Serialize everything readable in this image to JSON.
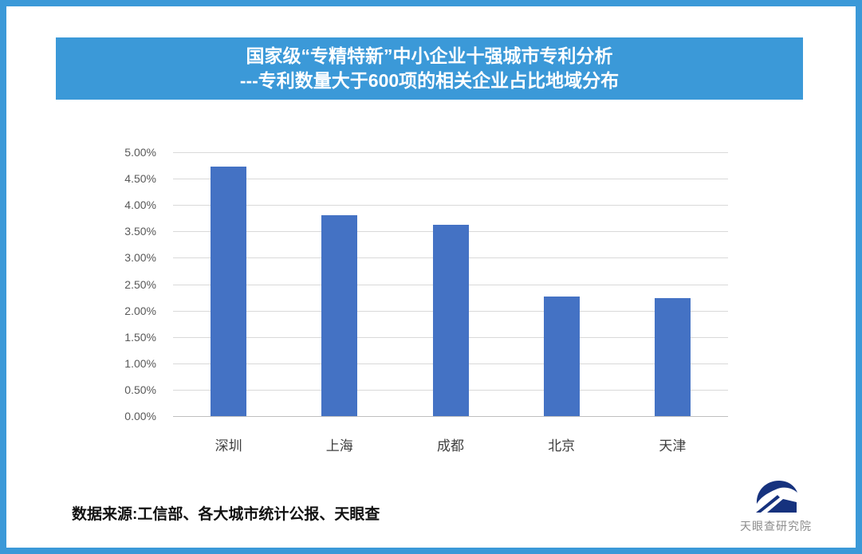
{
  "colors": {
    "accent_blue": "#3b99d8",
    "banner_text": "#ffffff",
    "bar_blue": "#4472c4",
    "gridline": "#d9d9d9",
    "axis_line": "#bfbfbf",
    "y_tick_gray": "#595959",
    "x_label_dark": "#3f3f3f",
    "source_black": "#111111",
    "logo_navy": "#16327e",
    "logo_text_gray": "#8c8c8c"
  },
  "banner": {
    "title_line1": "国家级“专精特新”中小企业十强城市专利分析",
    "title_line2": "---专利数量大于600项的相关企业占比地域分布"
  },
  "chart_data": {
    "type": "bar",
    "title": "国家级“专精特新”中小企业十强城市专利分析---专利数量大于600项的相关企业占比地域分布",
    "categories": [
      "深圳",
      "上海",
      "成都",
      "北京",
      "天津"
    ],
    "values": [
      4.73,
      3.8,
      3.62,
      2.26,
      2.24
    ],
    "value_unit": "%",
    "xlabel": "",
    "ylabel": "",
    "ylim": [
      0,
      5
    ],
    "y_tick_step": 0.5,
    "y_ticks": [
      "0.00%",
      "0.50%",
      "1.00%",
      "1.50%",
      "2.00%",
      "2.50%",
      "3.00%",
      "3.50%",
      "4.00%",
      "4.50%",
      "5.00%"
    ],
    "grid": true,
    "legend": false,
    "bar_color": "#4472c4"
  },
  "footer": {
    "source_text": "数据来源:工信部、各大城市统计公报、天眼查"
  },
  "logo": {
    "text": "天眼查研究院"
  }
}
